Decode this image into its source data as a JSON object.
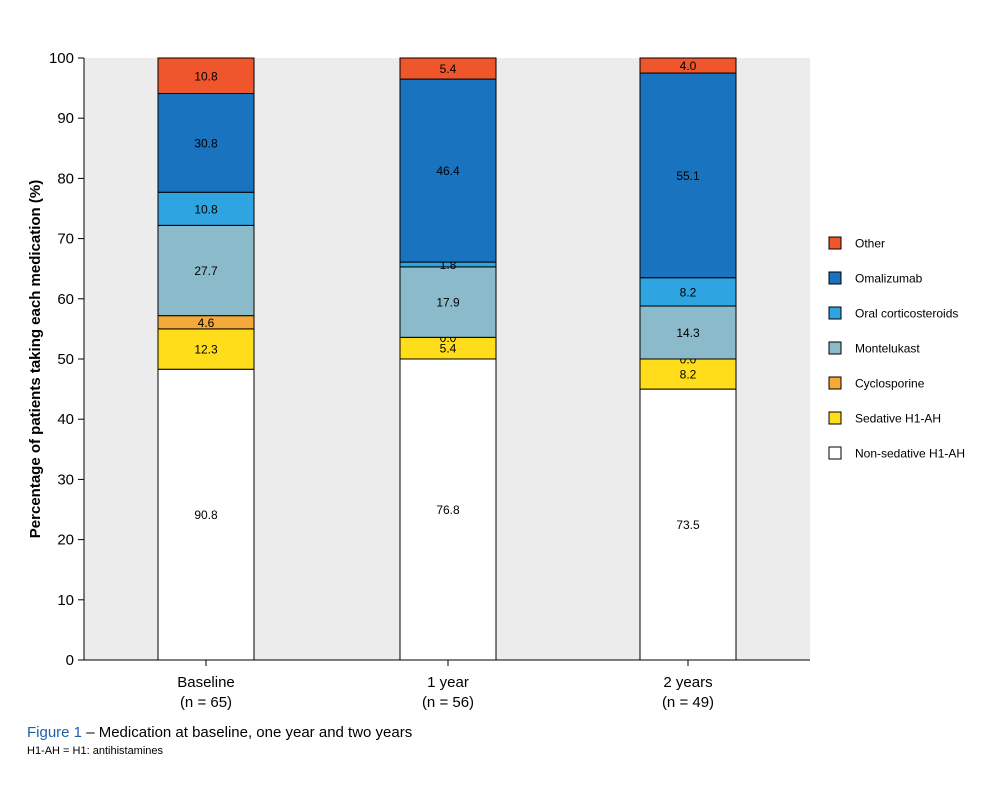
{
  "chart_data": {
    "type": "bar",
    "stacked": true,
    "ylabel": "Percentage of patients taking each medication (%)",
    "ylim": [
      0,
      100
    ],
    "yticks": [
      0,
      10,
      20,
      30,
      40,
      50,
      60,
      70,
      80,
      90,
      100
    ],
    "grid": false,
    "plot_background": "#ececec",
    "legend_position": "right",
    "categories": [
      {
        "label": "Baseline",
        "n": "(n = 65)"
      },
      {
        "label": "1 year",
        "n": "(n = 56)"
      },
      {
        "label": "2 years",
        "n": "(n = 49)"
      }
    ],
    "series": [
      {
        "name": "Non-sedative H1-AH",
        "color": "#ffffff",
        "segments": [
          48.3,
          50.0,
          45.0
        ],
        "labels": [
          "90.8",
          "76.8",
          "73.5"
        ]
      },
      {
        "name": "Sedative H1-AH",
        "color": "#ffdd1a",
        "segments": [
          6.7,
          3.6,
          5.0
        ],
        "labels": [
          "12.3",
          "5.4",
          "8.2"
        ]
      },
      {
        "name": "Cyclosporine",
        "color": "#f4a93a",
        "segments": [
          2.2,
          0.0,
          0.0
        ],
        "labels": [
          "4.6",
          "0.0",
          "0.0"
        ]
      },
      {
        "name": "Montelukast",
        "color": "#8bbacb",
        "segments": [
          15.0,
          11.7,
          8.8
        ],
        "labels": [
          "27.7",
          "17.9",
          "14.3"
        ]
      },
      {
        "name": "Oral corticosteroids",
        "color": "#2ea4e0",
        "segments": [
          5.5,
          0.8,
          4.7
        ],
        "labels": [
          "10.8",
          "1.8",
          "8.2"
        ]
      },
      {
        "name": "Omalizumab",
        "color": "#1a73bf",
        "segments": [
          16.4,
          30.4,
          34.0
        ],
        "labels": [
          "30.8",
          "46.4",
          "55.1"
        ]
      },
      {
        "name": "Other",
        "color": "#f0562b",
        "segments": [
          5.9,
          3.5,
          2.5
        ],
        "labels": [
          "10.8",
          "5.4",
          "4.0"
        ]
      }
    ],
    "legend_order": [
      "Other",
      "Omalizumab",
      "Oral corticosteroids",
      "Montelukast",
      "Cyclosporine",
      "Sedative H1-AH",
      "Non-sedative H1-AH"
    ]
  },
  "caption": {
    "figure_number": "Figure 1",
    "text": " – Medication at baseline, one year and two years"
  },
  "footnote": "H1-AH = H1: antihistamines"
}
